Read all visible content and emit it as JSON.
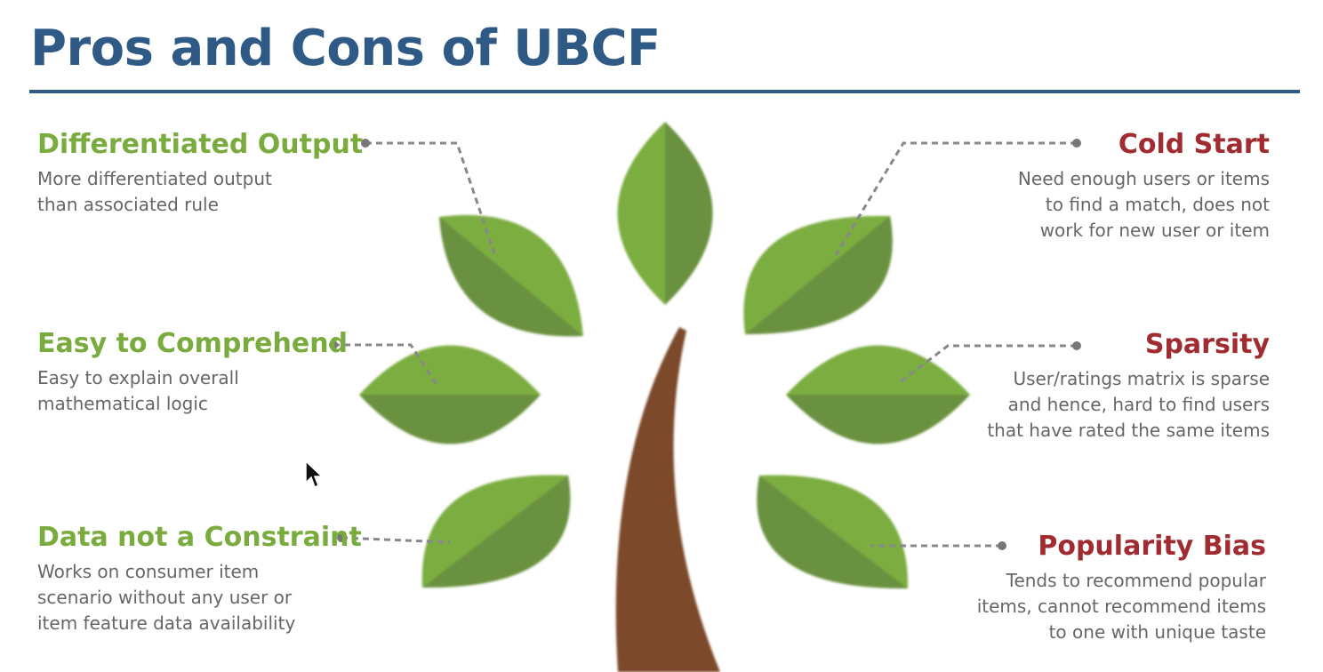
{
  "slide": {
    "title": "Pros and Cons of UBCF"
  },
  "colors": {
    "title": "#2f5a86",
    "pro_heading": "#7aab3f",
    "con_heading": "#a02b31",
    "body_text": "#666666",
    "leaf_light": "#7cad3f",
    "leaf_dark": "#6a9140",
    "trunk": "#7b4a2c",
    "connector": "#888888"
  },
  "pros": [
    {
      "heading": "Differentiated Output",
      "lines": [
        "More differentiated output",
        "than associated rule"
      ]
    },
    {
      "heading": "Easy to Comprehend",
      "lines": [
        "Easy to explain overall",
        "mathematical logic"
      ]
    },
    {
      "heading": "Data not a Constraint",
      "lines": [
        "Works on consumer item",
        "scenario without any user or",
        "item feature data availability"
      ]
    }
  ],
  "cons": [
    {
      "heading": "Cold Start",
      "lines": [
        "Need enough users or items",
        "to find a match, does not",
        "work for new user or item"
      ]
    },
    {
      "heading": "Sparsity",
      "lines": [
        "User/ratings matrix is sparse",
        "and hence, hard to find users",
        "that have rated the same items"
      ]
    },
    {
      "heading": "Popularity Bias",
      "lines": [
        "Tends to recommend popular",
        "items, cannot recommend items",
        "to one with unique taste"
      ]
    }
  ],
  "icons": {
    "leaf": "leaf-icon",
    "trunk": "tree-trunk",
    "pointer": "mouse-cursor-icon"
  }
}
